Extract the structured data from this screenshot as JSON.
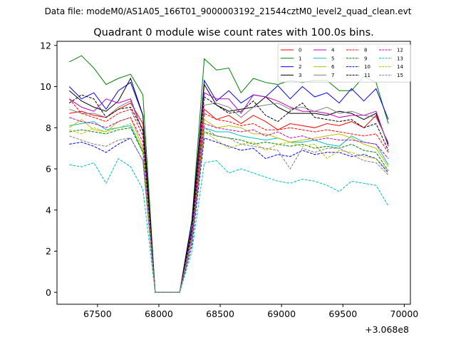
{
  "figure": {
    "suptitle": "Data file: modeM0/AS1A05_166T01_9000003192_21544cztM0_level2_quad_clean.evt"
  },
  "chart_data": {
    "type": "line",
    "title": "Quadrant 0 module wise count rates with 100.0s bins.",
    "xlabel": "",
    "ylabel": "",
    "x_offset_label": "+3.068e8",
    "xlim": [
      67170,
      70050
    ],
    "ylim": [
      -0.58,
      12.2
    ],
    "xticks": [
      67500,
      68000,
      68500,
      69000,
      69500,
      70000
    ],
    "yticks": [
      0,
      2,
      4,
      6,
      8,
      10,
      12
    ],
    "legend_loc": "upper-right",
    "legend_ncol": 4,
    "x": [
      67270,
      67370,
      67470,
      67570,
      67670,
      67770,
      67870,
      67970,
      68070,
      68170,
      68270,
      68370,
      68470,
      68570,
      68670,
      68770,
      68870,
      68970,
      69070,
      69170,
      69270,
      69370,
      69470,
      69570,
      69670,
      69770,
      69870
    ],
    "series": [
      {
        "name": "0",
        "color": "#ff0000",
        "dash": "solid",
        "values": [
          8.7,
          8.8,
          8.6,
          8.5,
          8.9,
          9.2,
          8.2,
          0,
          0,
          0,
          2.8,
          8.9,
          8.4,
          8.6,
          8.2,
          8.6,
          8.3,
          7.9,
          8.2,
          8.1,
          8.0,
          8.2,
          8.1,
          8.3,
          8.0,
          8.6,
          7.2
        ]
      },
      {
        "name": "1",
        "color": "#008000",
        "dash": "solid",
        "values": [
          11.2,
          11.5,
          10.9,
          10.1,
          10.4,
          10.6,
          9.6,
          0,
          0,
          0,
          3.5,
          11.35,
          10.8,
          10.9,
          9.7,
          10.4,
          10.2,
          10.1,
          10.3,
          10.2,
          10.3,
          10.3,
          9.8,
          9.8,
          10.5,
          10.2,
          8.2
        ]
      },
      {
        "name": "2",
        "color": "#0000ff",
        "dash": "solid",
        "values": [
          10.0,
          9.4,
          9.7,
          8.9,
          9.8,
          10.2,
          8.6,
          0,
          0,
          0,
          3.2,
          10.3,
          9.3,
          9.8,
          9.2,
          9.6,
          9.5,
          10.05,
          9.4,
          10.0,
          9.5,
          9.7,
          9.2,
          9.9,
          9.3,
          9.9,
          8.4
        ]
      },
      {
        "name": "3",
        "color": "#000000",
        "dash": "solid",
        "values": [
          9.8,
          9.3,
          9.0,
          8.8,
          9.3,
          10.4,
          8.6,
          0,
          0,
          0,
          3.5,
          10.1,
          9.1,
          8.8,
          8.9,
          9.0,
          9.5,
          9.0,
          8.7,
          8.7,
          8.7,
          8.6,
          8.8,
          8.7,
          8.4,
          8.7,
          7.2
        ]
      },
      {
        "name": "4",
        "color": "#bf00bf",
        "dash": "solid",
        "values": [
          9.4,
          9.0,
          8.8,
          9.4,
          9.2,
          9.4,
          7.8,
          0,
          0,
          0,
          3.0,
          9.7,
          9.4,
          9.4,
          8.7,
          9.6,
          9.5,
          9.3,
          9.0,
          8.8,
          8.8,
          8.7,
          8.5,
          8.6,
          8.6,
          8.8,
          7.1
        ]
      },
      {
        "name": "5",
        "color": "#00bfbf",
        "dash": "solid",
        "values": [
          8.1,
          8.2,
          8.3,
          7.9,
          8.0,
          8.1,
          6.8,
          0,
          0,
          0,
          2.6,
          8.0,
          7.8,
          7.8,
          7.6,
          7.5,
          7.4,
          7.5,
          7.3,
          7.3,
          7.4,
          7.2,
          7.1,
          7.6,
          7.3,
          7.2,
          6.2
        ]
      },
      {
        "name": "6",
        "color": "#bfbf00",
        "dash": "solid",
        "values": [
          8.0,
          8.4,
          7.9,
          7.8,
          8.3,
          8.5,
          7.0,
          0,
          0,
          0,
          2.7,
          8.4,
          8.0,
          8.1,
          8.0,
          7.7,
          7.7,
          7.5,
          7.3,
          7.4,
          7.5,
          7.6,
          7.7,
          7.5,
          7.2,
          7.0,
          6.1
        ]
      },
      {
        "name": "7",
        "color": "#808080",
        "dash": "solid",
        "values": [
          8.9,
          8.7,
          8.7,
          8.5,
          9.0,
          9.3,
          7.8,
          0,
          0,
          0,
          3.0,
          9.1,
          9.2,
          9.0,
          8.5,
          9.0,
          9.1,
          9.2,
          8.9,
          9.0,
          8.8,
          9.0,
          8.7,
          8.8,
          8.6,
          8.5,
          7.3
        ]
      },
      {
        "name": "8",
        "color": "#ff0000",
        "dash": "dashed",
        "values": [
          9.4,
          8.7,
          8.5,
          8.3,
          8.7,
          8.9,
          7.6,
          0,
          0,
          0,
          2.9,
          8.7,
          8.4,
          8.3,
          8.1,
          8.2,
          7.9,
          7.9,
          8.0,
          7.9,
          7.8,
          7.9,
          7.8,
          7.7,
          7.6,
          7.7,
          6.8
        ]
      },
      {
        "name": "9",
        "color": "#008000",
        "dash": "dashed",
        "values": [
          7.8,
          7.9,
          7.8,
          7.7,
          7.9,
          8.0,
          6.8,
          0,
          0,
          0,
          2.6,
          7.8,
          7.6,
          7.5,
          7.4,
          7.2,
          7.3,
          7.2,
          7.1,
          7.2,
          7.0,
          7.1,
          7.0,
          7.2,
          6.9,
          6.8,
          5.9
        ]
      },
      {
        "name": "10",
        "color": "#0000ff",
        "dash": "dashed",
        "values": [
          7.2,
          7.3,
          7.1,
          6.8,
          7.2,
          7.5,
          6.4,
          0,
          0,
          0,
          2.3,
          7.5,
          7.3,
          7.1,
          6.9,
          7.0,
          6.5,
          6.7,
          6.6,
          6.9,
          6.7,
          6.8,
          6.8,
          6.6,
          6.7,
          6.5,
          5.8
        ]
      },
      {
        "name": "11",
        "color": "#000000",
        "dash": "dashed",
        "values": [
          9.2,
          9.6,
          9.4,
          8.5,
          8.9,
          9.0,
          7.9,
          0,
          0,
          0,
          3.0,
          9.5,
          9.1,
          8.7,
          8.8,
          9.3,
          8.6,
          8.3,
          8.8,
          9.2,
          8.5,
          8.4,
          8.3,
          8.4,
          8.0,
          8.2,
          6.9
        ]
      },
      {
        "name": "12",
        "color": "#bf00bf",
        "dash": "dashed",
        "values": [
          8.5,
          8.3,
          8.2,
          8.0,
          8.3,
          8.5,
          7.3,
          0,
          0,
          0,
          2.8,
          8.2,
          8.0,
          7.9,
          7.8,
          7.9,
          7.6,
          7.8,
          7.5,
          7.6,
          7.4,
          7.5,
          7.4,
          7.4,
          7.3,
          7.2,
          6.5
        ]
      },
      {
        "name": "13",
        "color": "#00bfbf",
        "dash": "dashed",
        "values": [
          6.2,
          6.1,
          6.3,
          5.3,
          6.5,
          6.1,
          5.0,
          0,
          0,
          0,
          2.0,
          6.3,
          6.4,
          5.8,
          6.0,
          5.8,
          5.6,
          5.4,
          5.3,
          5.5,
          5.4,
          5.2,
          4.9,
          5.4,
          5.3,
          5.2,
          4.2
        ]
      },
      {
        "name": "14",
        "color": "#bfbf00",
        "dash": "dashed",
        "values": [
          7.9,
          7.7,
          8.0,
          7.8,
          8.0,
          8.2,
          6.9,
          0,
          0,
          0,
          2.6,
          7.8,
          7.4,
          7.0,
          7.2,
          7.3,
          6.9,
          7.2,
          7.3,
          7.1,
          7.2,
          6.5,
          6.9,
          6.8,
          6.6,
          6.5,
          5.9
        ]
      },
      {
        "name": "15",
        "color": "#808080",
        "dash": "dashed",
        "values": [
          7.6,
          7.4,
          7.2,
          7.1,
          7.4,
          7.5,
          6.4,
          0,
          0,
          0,
          2.5,
          8.0,
          7.6,
          7.5,
          7.2,
          7.1,
          7.0,
          6.9,
          6.0,
          7.0,
          6.8,
          7.0,
          7.0,
          6.7,
          6.4,
          6.3,
          5.7
        ]
      }
    ]
  }
}
